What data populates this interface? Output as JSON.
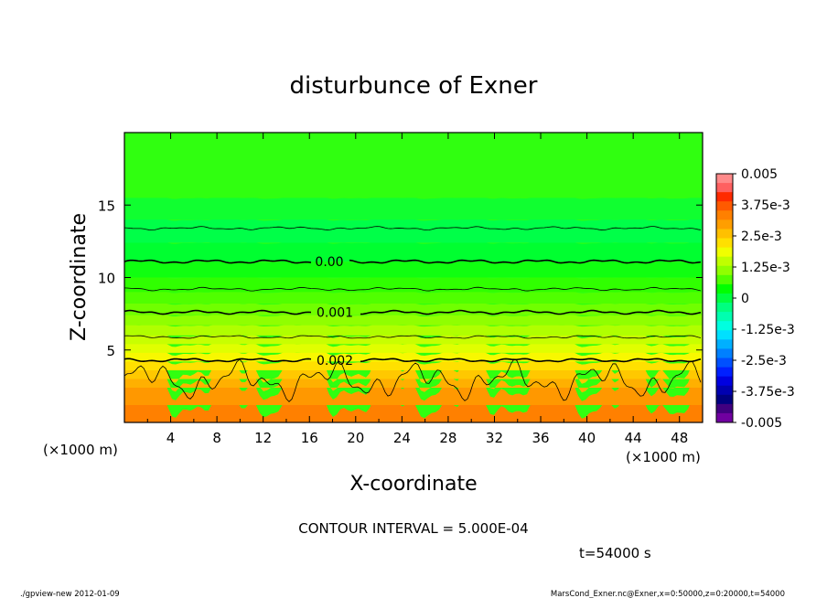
{
  "chart_data": {
    "type": "contour",
    "title": "disturbunce of Exner",
    "xlabel": "X-coordinate",
    "ylabel": "Z-coordinate",
    "x_unit": "(×1000 m)",
    "y_unit": "(×1000 m)",
    "xlim": [
      0,
      50
    ],
    "ylim": [
      0,
      20
    ],
    "x_ticks": [
      "4",
      "8",
      "12",
      "16",
      "20",
      "24",
      "28",
      "32",
      "36",
      "40",
      "44",
      "48"
    ],
    "y_ticks": [
      "5",
      "10",
      "15"
    ],
    "contour_lines": [
      {
        "label": "0.00",
        "level": 0.0,
        "z": 11.1
      },
      {
        "label": "0.001",
        "level": 0.001,
        "z": 7.6
      },
      {
        "label": "0.002",
        "level": 0.002,
        "z": 4.3
      }
    ],
    "colorbar": {
      "labels": [
        "0.005",
        "3.75e-3",
        "2.5e-3",
        "1.25e-3",
        "0",
        "-1.25e-3",
        "-2.5e-3",
        "-3.75e-3",
        "-0.005"
      ],
      "colors": [
        "#ff8a8a",
        "#ff6060",
        "#ff2a00",
        "#ff5a00",
        "#ff8000",
        "#ff9e00",
        "#ffc000",
        "#ffe000",
        "#f0ff00",
        "#c0ff00",
        "#90ff00",
        "#50ff00",
        "#00ff00",
        "#00ff40",
        "#00ff80",
        "#00ffb0",
        "#00ffe0",
        "#00e0ff",
        "#00b0ff",
        "#0080ff",
        "#0050ff",
        "#0020ff",
        "#0000e0",
        "#0000b0",
        "#000080",
        "#400080",
        "#7000a0"
      ]
    },
    "field_colors": [
      "#ff8000",
      "#ff9800",
      "#ffb000",
      "#ffc800",
      "#ffe000",
      "#f8f800",
      "#e0ff00",
      "#c8ff00",
      "#b0ff00",
      "#90ff00",
      "#70ff00",
      "#50ff00",
      "#30ff00",
      "#10ff10",
      "#00ff30",
      "#00ff48",
      "#10ff30",
      "#30ff10"
    ],
    "contour_interval": "CONTOUR INTERVAL = 5.000E-04",
    "time": "t=54000 s"
  },
  "footer": {
    "left": "./gpview-new  2012-01-09",
    "right": "MarsCond_Exner.nc@Exner,x=0:50000,z=0:20000,t=54000"
  }
}
